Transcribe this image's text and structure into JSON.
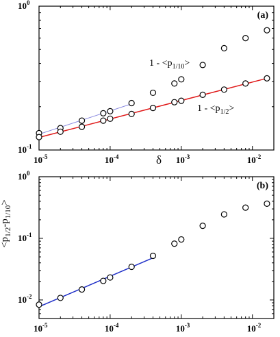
{
  "chart_data": [
    {
      "panel_label": "(a)",
      "type": "scatter",
      "xscale": "log",
      "yscale": "log",
      "xlim": [
        1e-05,
        0.02
      ],
      "ylim": [
        0.1,
        1
      ],
      "xlabel": "δ",
      "ylabel": "",
      "x_ticks": [
        {
          "value": 1e-05,
          "base": "10",
          "exp": "-5"
        },
        {
          "value": 0.0001,
          "base": "10",
          "exp": "-4"
        },
        {
          "value": 0.001,
          "base": "10",
          "exp": "-3"
        },
        {
          "value": 0.01,
          "base": "10",
          "exp": "-2"
        }
      ],
      "y_ticks": [
        {
          "value": 0.1,
          "base": "10",
          "exp": "-1"
        },
        {
          "value": 1,
          "base": "10",
          "exp": "0"
        }
      ],
      "series": [
        {
          "name": "1 - <p1/10>",
          "label_main": "1 - <p",
          "label_sub": "1/10",
          "label_end": ">",
          "x": [
            1e-05,
            2e-05,
            4e-05,
            8e-05,
            0.0001,
            0.0002,
            0.0004,
            0.0008,
            0.001,
            0.002,
            0.004,
            0.008,
            0.016
          ],
          "y": [
            0.131,
            0.142,
            0.16,
            0.18,
            0.186,
            0.212,
            0.25,
            0.29,
            0.31,
            0.39,
            0.51,
            0.6,
            0.68
          ],
          "fit": {
            "x0": 1e-05,
            "x1": 0.0002,
            "color": "#8a8ae0",
            "width": 1
          }
        },
        {
          "name": "1 - <p1/2>",
          "label_main": "1 - <p",
          "label_sub": "1/2",
          "label_end": ">",
          "x": [
            1e-05,
            2e-05,
            4e-05,
            8e-05,
            0.0001,
            0.0002,
            0.0004,
            0.0008,
            0.001,
            0.002,
            0.004,
            0.008,
            0.016
          ],
          "y": [
            0.123,
            0.134,
            0.145,
            0.16,
            0.165,
            0.178,
            0.196,
            0.215,
            0.22,
            0.242,
            0.263,
            0.29,
            0.315
          ],
          "fit": {
            "x0": 1e-05,
            "x1": 0.016,
            "color": "#e01a1a",
            "width": 1.5
          }
        }
      ]
    },
    {
      "panel_label": "(b)",
      "type": "scatter",
      "xscale": "log",
      "yscale": "log",
      "xlim": [
        1e-05,
        0.02
      ],
      "ylim": [
        0.005,
        1
      ],
      "xlabel": "",
      "ylabel": "<p1/2-p1/10>",
      "ylabel_parts": {
        "a": "<p",
        "sub1": "1/2",
        "mid": "-p",
        "sub2": "1/10",
        "end": ">"
      },
      "x_ticks": [
        {
          "value": 1e-05,
          "base": "10",
          "exp": "-5"
        },
        {
          "value": 0.0001,
          "base": "10",
          "exp": "-4"
        },
        {
          "value": 0.001,
          "base": "10",
          "exp": "-3"
        },
        {
          "value": 0.01,
          "base": "10",
          "exp": "-2"
        }
      ],
      "y_ticks": [
        {
          "value": 0.01,
          "base": "10",
          "exp": "-2"
        },
        {
          "value": 0.1,
          "base": "10",
          "exp": "-1"
        },
        {
          "value": 1,
          "base": "10",
          "exp": "0"
        }
      ],
      "series": [
        {
          "name": "",
          "x": [
            1e-05,
            2e-05,
            4e-05,
            8e-05,
            0.0001,
            0.0002,
            0.0004,
            0.0008,
            0.001,
            0.002,
            0.004,
            0.008,
            0.016
          ],
          "y": [
            0.0084,
            0.0108,
            0.0148,
            0.0204,
            0.0232,
            0.0345,
            0.052,
            0.082,
            0.096,
            0.16,
            0.245,
            0.315,
            0.365
          ],
          "fit": {
            "x0": 1e-05,
            "x1": 0.0004,
            "color": "#1f2fc8",
            "width": 1.5
          }
        }
      ]
    }
  ]
}
